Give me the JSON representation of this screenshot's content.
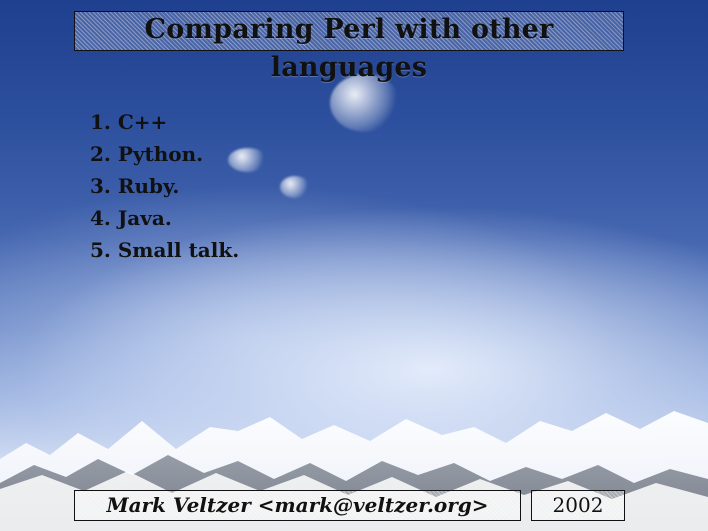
{
  "slide": {
    "title": "Comparing Perl with other languages",
    "items": [
      "1. C++",
      "2. Python.",
      "3. Ruby.",
      "4. Java.",
      "5. Small talk."
    ],
    "footer": {
      "author": "Mark Veltzer <mark@veltzer.org>",
      "year": "2002"
    }
  },
  "colors": {
    "sky_top": "#1f3f8f",
    "sky_bottom": "#eef3fc",
    "text": "#111111"
  },
  "background": {
    "image_semantic": "blue-sky-with-clouds-and-snowy-mountains"
  }
}
